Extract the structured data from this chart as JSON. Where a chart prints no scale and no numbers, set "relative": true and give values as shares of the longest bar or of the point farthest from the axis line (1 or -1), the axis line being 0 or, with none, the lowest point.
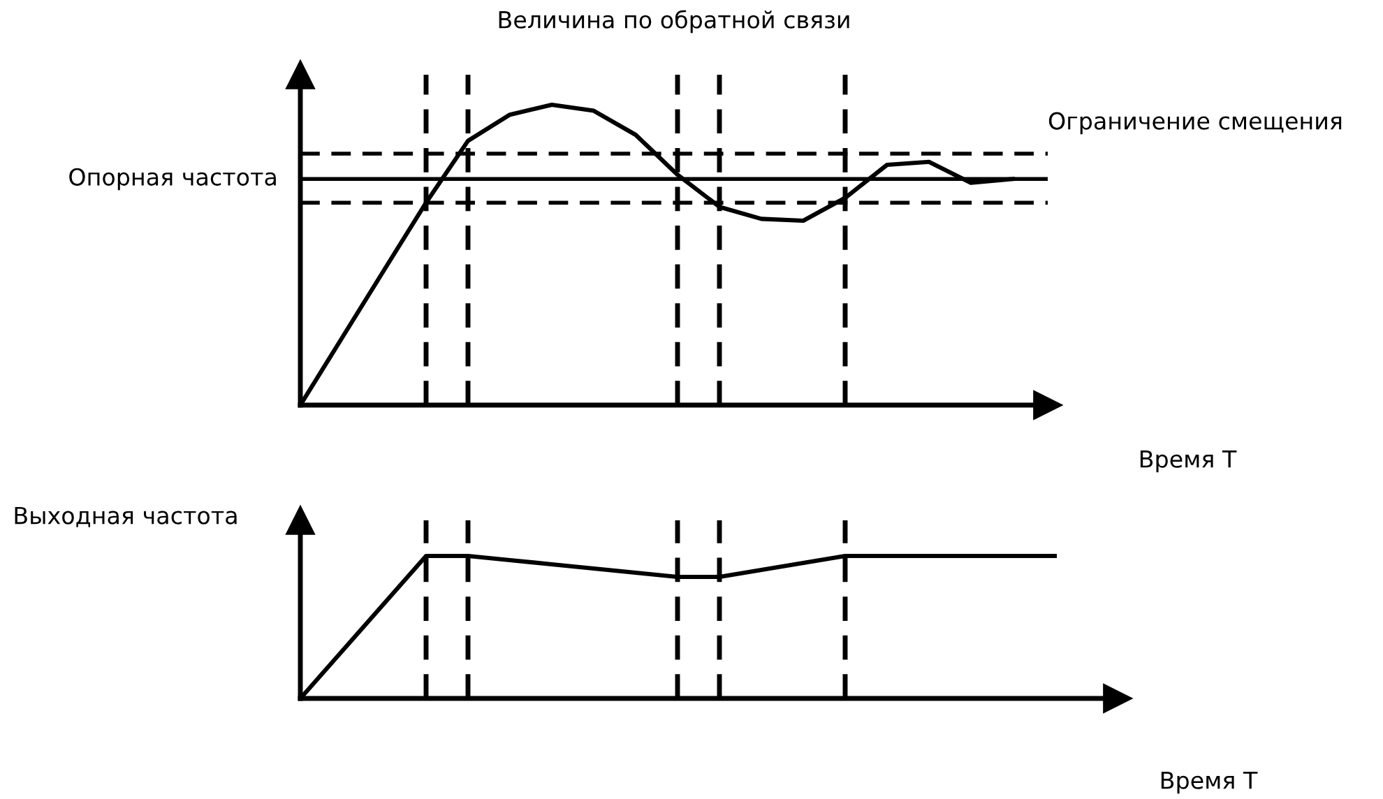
{
  "chart_data": [
    {
      "type": "line",
      "title": "Величина по обратной связи",
      "xlabel": "Время T",
      "relative": true,
      "categories": [
        null,
        null,
        null,
        null,
        null,
        null,
        null,
        null,
        null,
        null,
        null,
        null,
        null,
        null,
        null,
        null,
        null,
        null
      ],
      "series": [
        {
          "color": "#000000",
          "values": [
            0,
            0.225,
            0.45,
            0.674,
            0.88,
            0.967,
            1.0,
            0.98,
            0.9,
            0.767,
            0.66,
            0.62,
            0.614,
            0.69,
            0.8,
            0.81,
            0.74,
            0.753
          ]
        }
      ],
      "ref_lines": [
        {
          "axis": "y",
          "value": 0.753,
          "label": "Опорная частота",
          "color": "#000000",
          "line_style": "solid"
        },
        {
          "axis": "y",
          "value": 0.837,
          "label": null,
          "color": "#000000",
          "line_style": "dashed"
        },
        {
          "axis": "y",
          "value": 0.674,
          "label": null,
          "color": "#000000",
          "line_style": "dashed"
        }
      ],
      "annotations": [
        "Ограничение смещения"
      ],
      "grid": "x",
      "marker": "none",
      "line_style": "solid"
    },
    {
      "type": "line",
      "ylabel": "Выходная частота",
      "xlabel": "Время T",
      "relative": true,
      "categories": [
        null,
        null,
        null,
        null,
        null,
        null,
        null,
        null,
        null,
        null,
        null,
        null,
        null,
        null,
        null,
        null,
        null,
        null,
        null
      ],
      "series": [
        {
          "color": "#000000",
          "values": [
            0,
            0.333,
            0.667,
            1,
            1,
            0.971,
            0.941,
            0.912,
            0.882,
            0.853,
            0.853,
            0.902,
            0.951,
            1,
            1,
            1,
            1,
            1,
            1
          ]
        }
      ],
      "grid": "x",
      "marker": "none",
      "line_style": "solid"
    }
  ]
}
